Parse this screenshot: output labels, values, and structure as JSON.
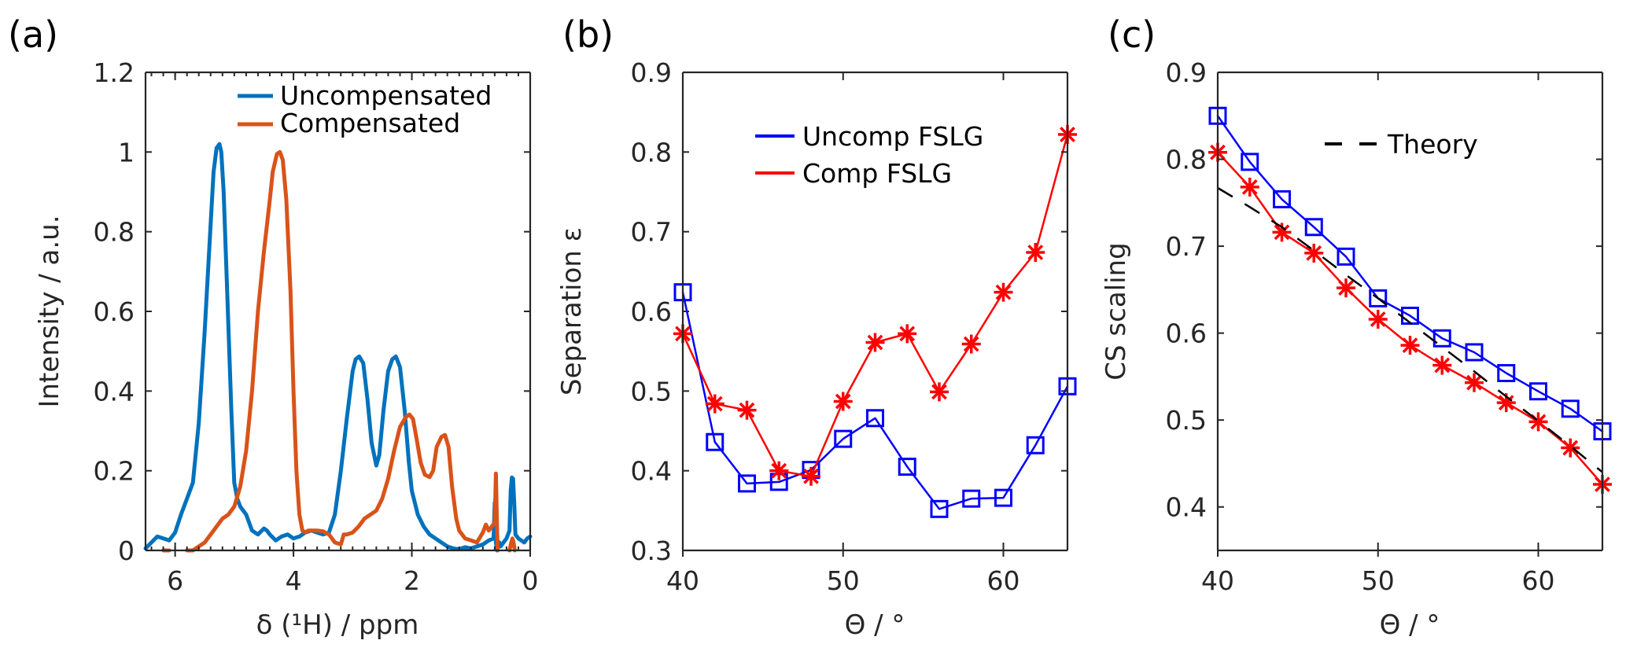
{
  "chart_data": [
    {
      "id": "a",
      "type": "line",
      "panel_label": "(a)",
      "title": "",
      "xlabel": "δ (¹H) / ppm",
      "ylabel": "Intensity / a.u.",
      "xlim": [
        6.5,
        0
      ],
      "x_reversed": true,
      "ylim": [
        0,
        1.2
      ],
      "xticks": [
        6,
        4,
        2,
        0
      ],
      "xtick_labels": [
        "6",
        "4",
        "2",
        "0"
      ],
      "x_minor_step": 0.2,
      "yticks": [
        0,
        0.2,
        0.4,
        0.6,
        0.8,
        1,
        1.2
      ],
      "ytick_labels": [
        "0",
        "0.2",
        "0.4",
        "0.6",
        "0.8",
        "1",
        "1.2"
      ],
      "grid": false,
      "legend_position": "top-right",
      "series": [
        {
          "name": "Uncompensated",
          "color": "#0072BD",
          "marker": "none",
          "x": [
            6.5,
            6.4,
            6.3,
            6.2,
            6.1,
            6.0,
            5.9,
            5.8,
            5.7,
            5.6,
            5.5,
            5.4,
            5.35,
            5.3,
            5.25,
            5.22,
            5.18,
            5.12,
            5.05,
            5.0,
            4.95,
            4.9,
            4.8,
            4.7,
            4.6,
            4.5,
            4.45,
            4.4,
            4.3,
            4.2,
            4.1,
            4.0,
            3.9,
            3.8,
            3.7,
            3.6,
            3.5,
            3.4,
            3.3,
            3.2,
            3.1,
            3.0,
            2.95,
            2.89,
            2.82,
            2.75,
            2.68,
            2.6,
            2.55,
            2.48,
            2.4,
            2.33,
            2.27,
            2.2,
            2.12,
            2.05,
            2.0,
            1.9,
            1.8,
            1.7,
            1.6,
            1.5,
            1.4,
            1.3,
            1.2,
            1.1,
            1.0,
            0.9,
            0.8,
            0.7,
            0.62,
            0.6,
            0.58,
            0.56,
            0.54,
            0.52,
            0.5,
            0.45,
            0.4,
            0.35,
            0.33,
            0.31,
            0.29,
            0.27,
            0.25,
            0.2,
            0.15,
            0.1,
            0.05,
            0.0
          ],
          "y": [
            0.005,
            0.02,
            0.035,
            0.03,
            0.025,
            0.045,
            0.09,
            0.13,
            0.17,
            0.32,
            0.55,
            0.82,
            0.95,
            1.01,
            1.02,
            1.0,
            0.9,
            0.65,
            0.35,
            0.17,
            0.13,
            0.11,
            0.09,
            0.05,
            0.04,
            0.055,
            0.05,
            0.04,
            0.025,
            0.035,
            0.04,
            0.03,
            0.035,
            0.045,
            0.05,
            0.045,
            0.04,
            0.045,
            0.09,
            0.2,
            0.33,
            0.45,
            0.48,
            0.487,
            0.47,
            0.38,
            0.27,
            0.213,
            0.24,
            0.35,
            0.45,
            0.48,
            0.487,
            0.46,
            0.35,
            0.22,
            0.15,
            0.09,
            0.06,
            0.04,
            0.03,
            0.02,
            0.01,
            0.005,
            0.003,
            0.008,
            0.005,
            0.01,
            0.015,
            0.025,
            0.03,
            0.12,
            0.02,
            0.0,
            0.01,
            0.02,
            0.01,
            0.02,
            0.03,
            0.05,
            0.15,
            0.183,
            0.18,
            0.12,
            0.04,
            0.03,
            0.025,
            0.02,
            0.03,
            0.035
          ]
        },
        {
          "name": "Compensated",
          "color": "#D95319",
          "marker": "none",
          "x": [
            6.45,
            6.4,
            6.3,
            6.2,
            6.1,
            6.0,
            5.9,
            5.8,
            5.7,
            5.6,
            5.5,
            5.4,
            5.3,
            5.2,
            5.1,
            5.0,
            4.9,
            4.8,
            4.7,
            4.6,
            4.5,
            4.4,
            4.35,
            4.28,
            4.23,
            4.18,
            4.12,
            4.05,
            4.0,
            3.95,
            3.9,
            3.85,
            3.8,
            3.75,
            3.7,
            3.6,
            3.5,
            3.4,
            3.3,
            3.2,
            3.15,
            3.1,
            3.0,
            2.9,
            2.8,
            2.7,
            2.6,
            2.5,
            2.4,
            2.3,
            2.2,
            2.1,
            2.04,
            1.98,
            1.92,
            1.85,
            1.78,
            1.7,
            1.64,
            1.58,
            1.5,
            1.44,
            1.38,
            1.32,
            1.25,
            1.2,
            1.1,
            1.0,
            0.9,
            0.8,
            0.75,
            0.7,
            0.65,
            0.6,
            0.58,
            0.56,
            0.55,
            0.5,
            0.4,
            0.35,
            0.32,
            0.3,
            0.28,
            0.26,
            0.2
          ],
          "y": [
            null,
            0.0,
            null,
            0.0,
            0.0,
            null,
            null,
            0.0,
            0.0,
            0.01,
            0.02,
            0.04,
            0.06,
            0.08,
            0.09,
            0.11,
            0.16,
            0.25,
            0.4,
            0.6,
            0.75,
            0.88,
            0.95,
            0.995,
            1.0,
            0.98,
            0.88,
            0.65,
            0.4,
            0.2,
            0.09,
            0.05,
            0.045,
            0.05,
            0.05,
            0.05,
            0.048,
            0.04,
            0.02,
            0.015,
            0.04,
            0.04,
            0.045,
            0.06,
            0.08,
            0.09,
            0.1,
            0.13,
            0.18,
            0.25,
            0.31,
            0.335,
            0.341,
            0.33,
            0.28,
            0.22,
            0.19,
            0.184,
            0.2,
            0.26,
            0.285,
            0.29,
            0.26,
            0.16,
            0.08,
            0.05,
            0.03,
            0.025,
            0.02,
            0.045,
            0.065,
            0.05,
            0.06,
            0.07,
            0.193,
            0.05,
            0.0,
            null,
            null,
            0.0,
            0.02,
            0.03,
            0.02,
            0.0,
            null
          ]
        }
      ]
    },
    {
      "id": "b",
      "type": "line",
      "panel_label": "(b)",
      "title": "",
      "xlabel": "Θ / °",
      "ylabel": "Separation ε",
      "xlim": [
        40,
        64
      ],
      "ylim": [
        0.3,
        0.9
      ],
      "xticks": [
        40,
        50,
        60
      ],
      "xtick_labels": [
        "40",
        "50",
        "60"
      ],
      "yticks": [
        0.3,
        0.4,
        0.5,
        0.6,
        0.7,
        0.8,
        0.9
      ],
      "ytick_labels": [
        "0.3",
        "0.4",
        "0.5",
        "0.6",
        "0.7",
        "0.8",
        "0.9"
      ],
      "grid": false,
      "legend_position": "upper-center",
      "x": [
        40,
        42,
        44,
        46,
        48,
        50,
        52,
        54,
        56,
        58,
        60,
        62,
        64
      ],
      "series": [
        {
          "name": "Uncomp FSLG",
          "color": "#0000FF",
          "marker": "square",
          "values": [
            0.624,
            0.436,
            0.384,
            0.386,
            0.401,
            0.44,
            0.466,
            0.405,
            0.352,
            0.365,
            0.366,
            0.432,
            0.506
          ]
        },
        {
          "name": "Comp FSLG",
          "color": "#FF0000",
          "marker": "asterisk",
          "values": [
            0.572,
            0.484,
            0.476,
            0.4,
            0.393,
            0.487,
            0.561,
            0.572,
            0.499,
            0.559,
            0.624,
            0.674,
            0.822
          ]
        }
      ]
    },
    {
      "id": "c",
      "type": "line",
      "panel_label": "(c)",
      "title": "",
      "xlabel": "Θ / °",
      "ylabel": "CS scaling",
      "xlim": [
        40,
        64
      ],
      "ylim": [
        0.35,
        0.9
      ],
      "xticks": [
        40,
        50,
        60
      ],
      "xtick_labels": [
        "40",
        "50",
        "60"
      ],
      "yticks": [
        0.4,
        0.5,
        0.6,
        0.7,
        0.8,
        0.9
      ],
      "ytick_labels": [
        "0.4",
        "0.5",
        "0.6",
        "0.7",
        "0.8",
        "0.9"
      ],
      "grid": false,
      "legend_position": "top-right",
      "x": [
        40,
        42,
        44,
        46,
        48,
        50,
        52,
        54,
        56,
        58,
        60,
        62,
        64
      ],
      "series": [
        {
          "name": "Uncomp FSLG",
          "color": "#0000FF",
          "marker": "square",
          "in_legend": false,
          "values": [
            0.85,
            0.797,
            0.754,
            0.722,
            0.688,
            0.64,
            0.62,
            0.594,
            0.578,
            0.554,
            0.533,
            0.513,
            0.487
          ]
        },
        {
          "name": "Comp FSLG",
          "color": "#FF0000",
          "marker": "asterisk",
          "in_legend": false,
          "values": [
            0.808,
            0.768,
            0.716,
            0.692,
            0.652,
            0.616,
            0.586,
            0.563,
            0.543,
            0.52,
            0.498,
            0.468,
            0.426
          ]
        },
        {
          "name": "Theory",
          "color": "#000000",
          "marker": "none",
          "dashed": true,
          "in_legend": true,
          "values": [
            0.767,
            0.745,
            0.722,
            0.695,
            0.667,
            0.64,
            0.612,
            0.584,
            0.556,
            0.527,
            0.499,
            0.47,
            0.44
          ]
        }
      ]
    }
  ]
}
